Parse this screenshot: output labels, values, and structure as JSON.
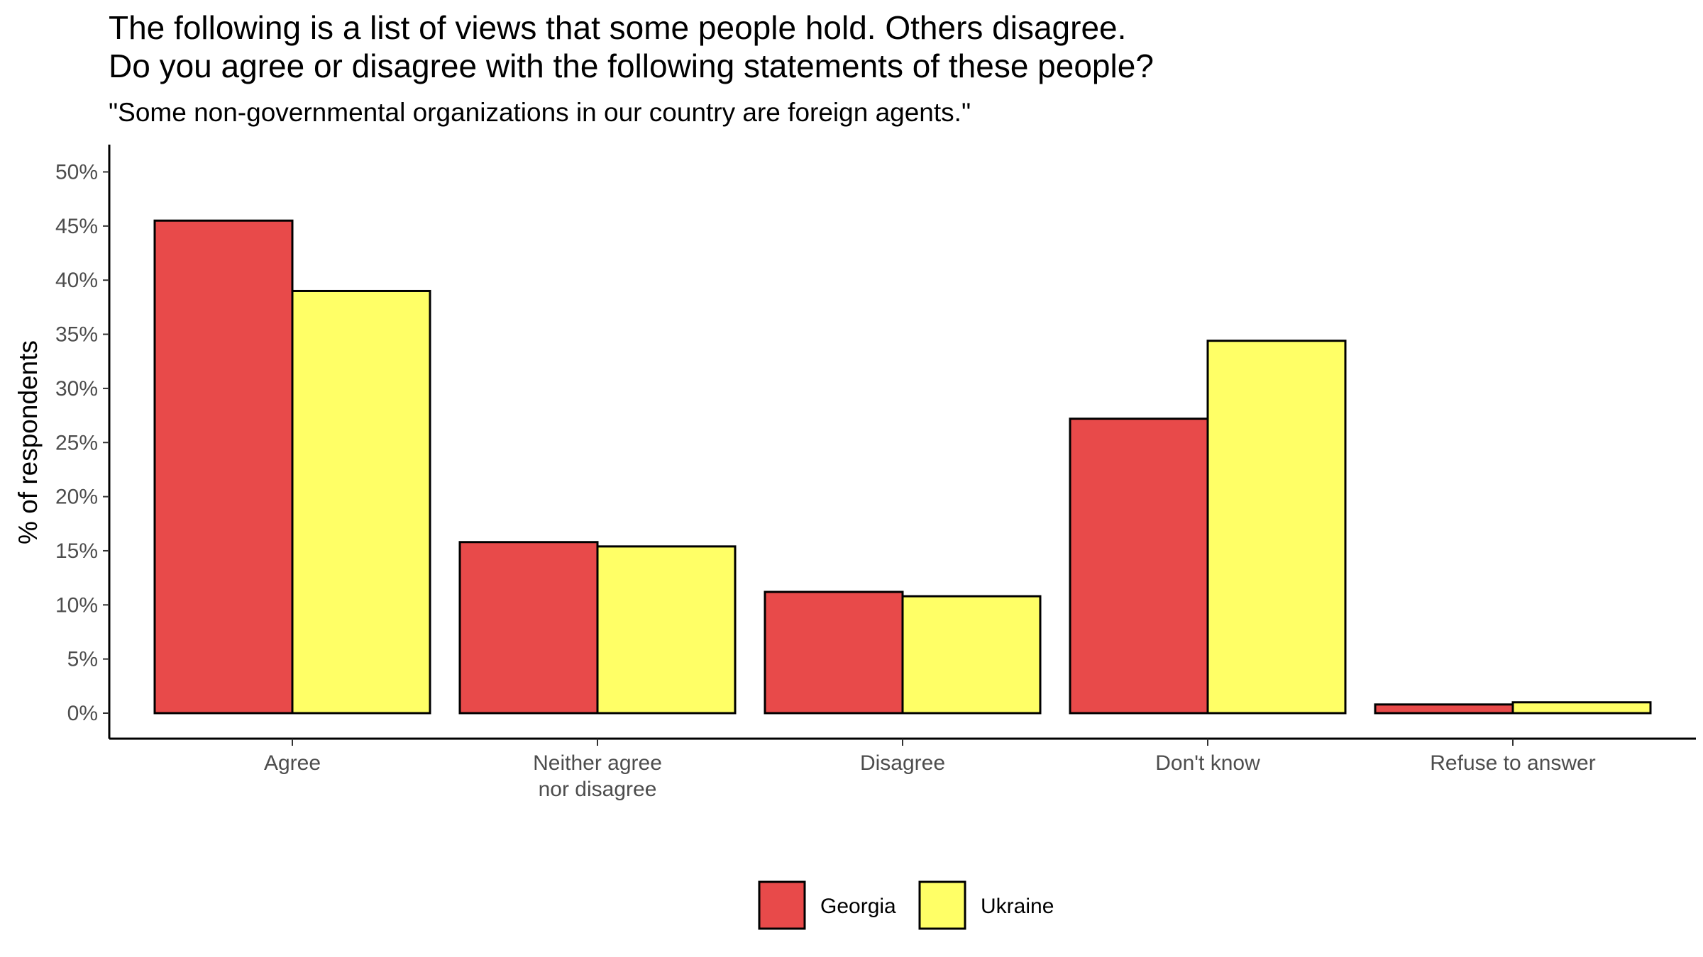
{
  "title_lines": [
    "The following is a list of views that some people hold. Others disagree.",
    "Do you agree or disagree with the following statements of these people?"
  ],
  "subtitle": "\"Some non-governmental organizations in our country are foreign agents.\"",
  "chart_data": {
    "type": "bar",
    "title": "The following is a list of views that some people hold. Others disagree. Do you agree or disagree with the following statements of these people?",
    "subtitle": "\"Some non-governmental organizations in our country are foreign agents.\"",
    "xlabel": "",
    "ylabel": "% of respondents",
    "ylim": [
      0,
      52
    ],
    "yticks": [
      0,
      5,
      10,
      15,
      20,
      25,
      30,
      35,
      40,
      45,
      50
    ],
    "ytick_labels": [
      "0%",
      "5%",
      "10%",
      "15%",
      "20%",
      "25%",
      "30%",
      "35%",
      "40%",
      "45%",
      "50%"
    ],
    "categories": [
      [
        "Agree"
      ],
      [
        "Neither agree",
        "nor disagree"
      ],
      [
        "Disagree"
      ],
      [
        "Don't know"
      ],
      [
        "Refuse to answer"
      ]
    ],
    "series": [
      {
        "name": "Georgia",
        "color": "#E84A4A",
        "values": [
          45.5,
          15.8,
          11.2,
          27.2,
          0.8
        ]
      },
      {
        "name": "Ukraine",
        "color": "#FFFF66",
        "values": [
          39.0,
          15.4,
          10.8,
          34.4,
          1.0
        ]
      }
    ],
    "legend_position": "bottom",
    "grid": false
  }
}
